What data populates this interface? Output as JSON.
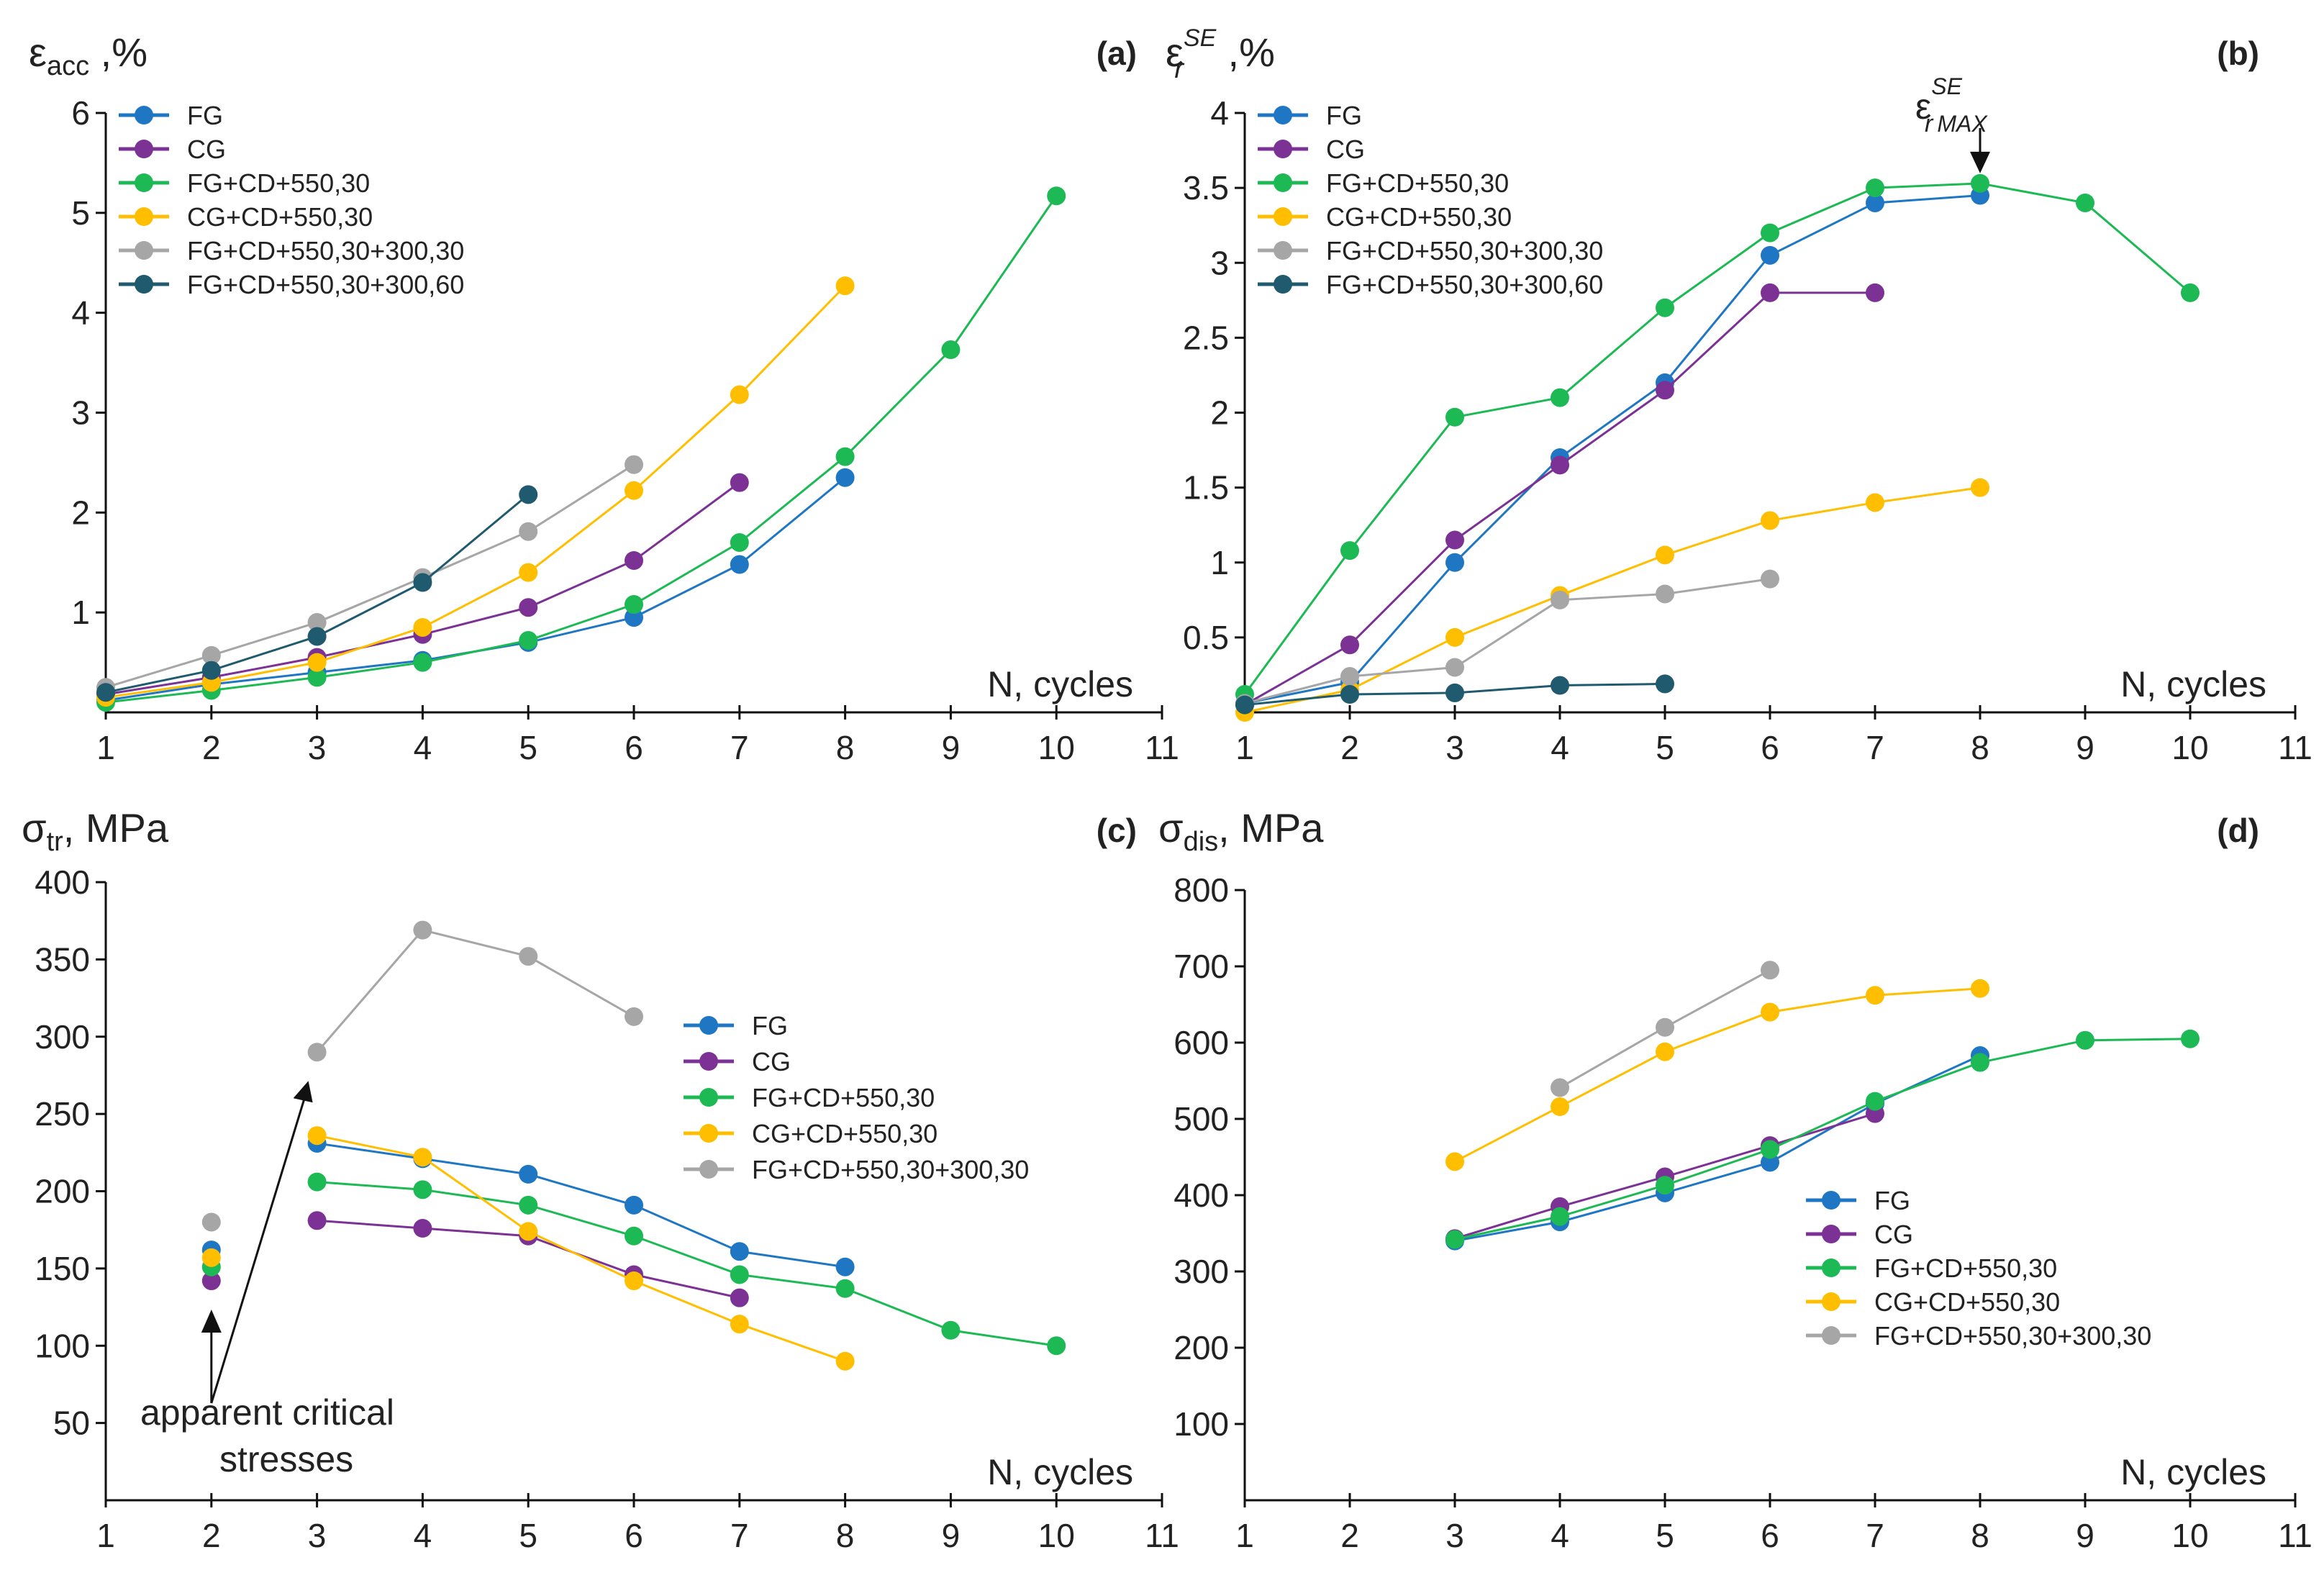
{
  "chart_data": [
    {
      "type": "line",
      "panel": "(a)",
      "ylabel": "ε",
      "ylabel_sub": "acc",
      "ylabel_unit": " ,%",
      "xlabel": "N, cycles",
      "xlim": [
        1,
        11
      ],
      "ylim": [
        0,
        6
      ],
      "xticks": [
        1,
        2,
        3,
        4,
        5,
        6,
        7,
        8,
        9,
        10,
        11
      ],
      "yticks": [
        1,
        2,
        3,
        4,
        5,
        6
      ],
      "legend_position": "top-left",
      "series": [
        {
          "name": "FG",
          "color": "#1f77c4",
          "x": [
            1,
            2,
            3,
            4,
            5,
            6,
            7,
            8
          ],
          "values": [
            0.12,
            0.28,
            0.4,
            0.52,
            0.7,
            0.95,
            1.48,
            2.35
          ]
        },
        {
          "name": "CG",
          "color": "#7b3294",
          "x": [
            1,
            2,
            3,
            4,
            5,
            6,
            7
          ],
          "values": [
            0.18,
            0.35,
            0.55,
            0.78,
            1.05,
            1.52,
            2.3
          ]
        },
        {
          "name": "FG+CD+550,30",
          "color": "#1db954",
          "x": [
            1,
            2,
            3,
            4,
            5,
            6,
            7,
            8,
            9,
            10
          ],
          "values": [
            0.1,
            0.22,
            0.35,
            0.5,
            0.72,
            1.08,
            1.7,
            2.56,
            3.63,
            5.17
          ]
        },
        {
          "name": "CG+CD+550,30",
          "color": "#ffbf00",
          "x": [
            1,
            2,
            3,
            4,
            5,
            6,
            7,
            8
          ],
          "values": [
            0.15,
            0.3,
            0.5,
            0.85,
            1.4,
            2.22,
            3.18,
            4.27
          ]
        },
        {
          "name": "FG+CD+550,30+300,30",
          "color": "#a6a6a6",
          "x": [
            1,
            2,
            3,
            4,
            5,
            6
          ],
          "values": [
            0.25,
            0.57,
            0.9,
            1.35,
            1.81,
            2.48
          ]
        },
        {
          "name": "FG+CD+550,30+300,60",
          "color": "#1f5a6e",
          "x": [
            1,
            2,
            3,
            4,
            5
          ],
          "values": [
            0.2,
            0.42,
            0.76,
            1.3,
            2.18
          ]
        }
      ]
    },
    {
      "type": "line",
      "panel": "(b)",
      "ylabel": "ε",
      "ylabel_sub": "r",
      "ylabel_sup": "SE",
      "ylabel_unit": " ,%",
      "xlabel": "N, cycles",
      "xlim": [
        1,
        11
      ],
      "ylim": [
        0,
        4
      ],
      "xticks": [
        1,
        2,
        3,
        4,
        5,
        6,
        7,
        8,
        9,
        10,
        11
      ],
      "yticks": [
        0.5,
        1,
        1.5,
        2,
        2.5,
        3,
        3.5,
        4
      ],
      "legend_position": "top-left",
      "annotation": {
        "base": "ε",
        "sub": "r",
        "sup": "SE",
        "sub2": "MAX",
        "x": 8,
        "y": 3.53
      },
      "series": [
        {
          "name": "FG",
          "color": "#1f77c4",
          "x": [
            1,
            2,
            3,
            4,
            5,
            6,
            7,
            8
          ],
          "values": [
            0.06,
            0.2,
            1.0,
            1.7,
            2.2,
            3.05,
            3.4,
            3.45
          ]
        },
        {
          "name": "CG",
          "color": "#7b3294",
          "x": [
            1,
            2,
            3,
            4,
            5,
            6,
            7
          ],
          "values": [
            0.05,
            0.45,
            1.15,
            1.65,
            2.15,
            2.8,
            2.8
          ]
        },
        {
          "name": "FG+CD+550,30",
          "color": "#1db954",
          "x": [
            1,
            2,
            3,
            4,
            5,
            6,
            7,
            8,
            9,
            10
          ],
          "values": [
            0.12,
            1.08,
            1.97,
            2.1,
            2.7,
            3.2,
            3.5,
            3.53,
            3.4,
            2.8
          ]
        },
        {
          "name": "CG+CD+550,30",
          "color": "#ffbf00",
          "x": [
            1,
            2,
            3,
            4,
            5,
            6,
            7,
            8
          ],
          "values": [
            0.0,
            0.15,
            0.5,
            0.78,
            1.05,
            1.28,
            1.4,
            1.5
          ]
        },
        {
          "name": "FG+CD+550,30+300,30",
          "color": "#a6a6a6",
          "x": [
            1,
            2,
            3,
            4,
            5,
            6
          ],
          "values": [
            0.06,
            0.24,
            0.3,
            0.75,
            0.79,
            0.89
          ]
        },
        {
          "name": "FG+CD+550,30+300,60",
          "color": "#1f5a6e",
          "x": [
            1,
            2,
            3,
            4,
            5
          ],
          "values": [
            0.05,
            0.12,
            0.13,
            0.18,
            0.19
          ]
        }
      ]
    },
    {
      "type": "line",
      "panel": "(c)",
      "ylabel": "σ",
      "ylabel_sub": "tr",
      "ylabel_unit": ", MPa",
      "xlabel": "N, cycles",
      "xlim": [
        1,
        11
      ],
      "ylim": [
        0,
        400
      ],
      "xticks": [
        1,
        2,
        3,
        4,
        5,
        6,
        7,
        8,
        9,
        10,
        11
      ],
      "yticks": [
        50,
        100,
        150,
        200,
        250,
        300,
        350,
        400
      ],
      "legend_position": "middle-right",
      "annotation_line1": "apparent critical",
      "annotation_line2": "stresses",
      "series": [
        {
          "name": "FG",
          "color": "#1f77c4",
          "x": [
            2
          ],
          "values": [
            162
          ],
          "x2": [
            3,
            4,
            5,
            6,
            7,
            8
          ],
          "values2": [
            231,
            221,
            211,
            191,
            161,
            151
          ]
        },
        {
          "name": "CG",
          "color": "#7b3294",
          "x": [
            2
          ],
          "values": [
            142
          ],
          "x2": [
            3,
            4,
            5,
            6,
            7
          ],
          "values2": [
            181,
            176,
            171,
            146,
            131
          ]
        },
        {
          "name": "FG+CD+550,30",
          "color": "#1db954",
          "x": [
            2
          ],
          "values": [
            151
          ],
          "x2": [
            3,
            4,
            5,
            6,
            7,
            8,
            9,
            10
          ],
          "values2": [
            206,
            201,
            191,
            171,
            146,
            137,
            110,
            100
          ]
        },
        {
          "name": "CG+CD+550,30",
          "color": "#ffbf00",
          "x": [
            2
          ],
          "values": [
            157
          ],
          "x2": [
            3,
            4,
            5,
            6,
            7,
            8
          ],
          "values2": [
            236,
            222,
            174,
            142,
            114,
            90
          ]
        },
        {
          "name": "FG+CD+550,30+300,30",
          "color": "#a6a6a6",
          "x": [
            2
          ],
          "values": [
            180
          ],
          "x2": [
            3,
            4,
            5,
            6
          ],
          "values2": [
            290,
            369,
            352,
            313
          ]
        }
      ]
    },
    {
      "type": "line",
      "panel": "(d)",
      "ylabel": "σ",
      "ylabel_sub": "dis",
      "ylabel_unit": ", MPa",
      "xlabel": "N, cycles",
      "xlim": [
        1,
        11
      ],
      "ylim": [
        0,
        800
      ],
      "xticks": [
        1,
        2,
        3,
        4,
        5,
        6,
        7,
        8,
        9,
        10,
        11
      ],
      "yticks": [
        100,
        200,
        300,
        400,
        500,
        600,
        700,
        800
      ],
      "legend_position": "bottom-right",
      "series": [
        {
          "name": "FG",
          "color": "#1f77c4",
          "x": [
            3,
            4,
            5,
            6,
            7,
            8
          ],
          "values": [
            340,
            365,
            403,
            443,
            520,
            583
          ]
        },
        {
          "name": "CG",
          "color": "#7b3294",
          "x": [
            3,
            4,
            5,
            6,
            7
          ],
          "values": [
            343,
            385,
            424,
            465,
            507
          ]
        },
        {
          "name": "FG+CD+550,30",
          "color": "#1db954",
          "x": [
            3,
            4,
            5,
            6,
            7,
            8,
            9,
            10
          ],
          "values": [
            342,
            372,
            413,
            460,
            523,
            574,
            603,
            605
          ]
        },
        {
          "name": "CG+CD+550,30",
          "color": "#ffbf00",
          "x": [
            3,
            4,
            5,
            6,
            7,
            8
          ],
          "values": [
            444,
            516,
            588,
            640,
            662,
            671
          ]
        },
        {
          "name": "FG+CD+550,30+300,30",
          "color": "#a6a6a6",
          "x": [
            4,
            5,
            6
          ],
          "values": [
            541,
            620,
            695
          ]
        }
      ]
    }
  ]
}
